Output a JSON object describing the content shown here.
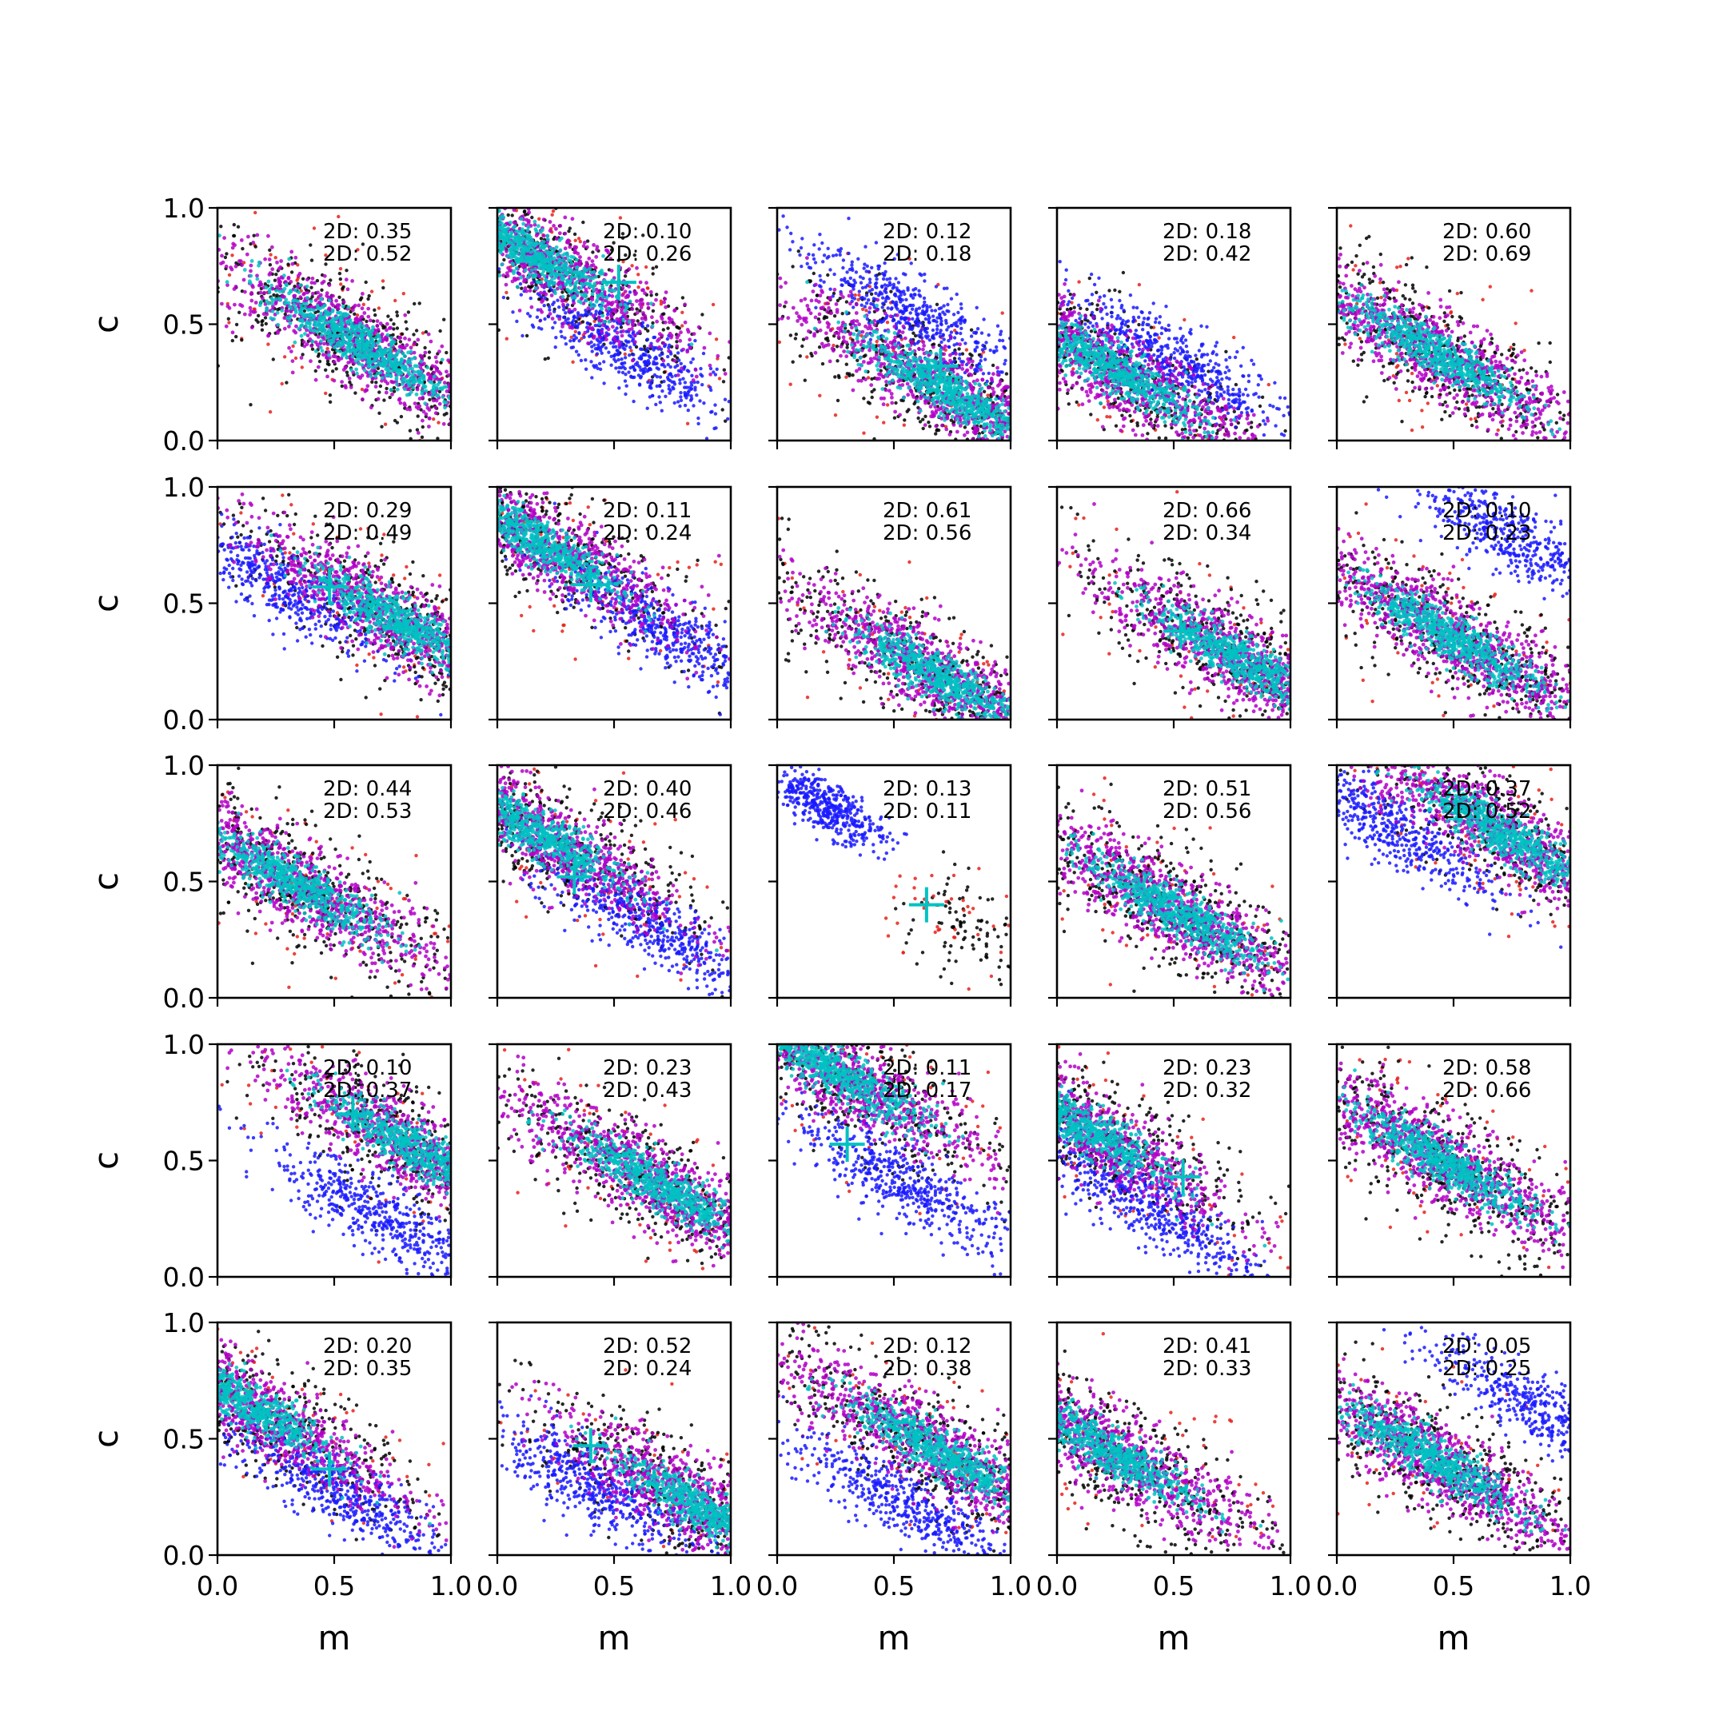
{
  "colors": {
    "outer": "#e8211a",
    "wide": "#000000",
    "mid": "#b300c8",
    "core": "#00c2c2",
    "alt": "#1a1aff",
    "marker": "#00c2c2"
  },
  "chart_data": {
    "type": "scatter",
    "rows": 5,
    "cols": 5,
    "xlabel": "m",
    "ylabel": "c",
    "xlim": [
      0,
      1
    ],
    "ylim": [
      0,
      1
    ],
    "x_ticks": [
      "0.0",
      "0.5",
      "1.0"
    ],
    "y_ticks": [
      "0.0",
      "0.5",
      "1.0"
    ],
    "panels": [
      {
        "stat1": "2D: 0.35",
        "stat2": "2D: 0.52",
        "center": [
          0.6,
          0.42
        ],
        "alt": null,
        "marker": null
      },
      {
        "stat1": "2D: 0.10",
        "stat2": "2D: 0.26",
        "center": [
          0.15,
          0.8
        ],
        "alt": [
          0.55,
          0.38
        ],
        "marker": [
          0.52,
          0.68
        ]
      },
      {
        "stat1": "2D: 0.12",
        "stat2": "2D: 0.18",
        "center": [
          0.72,
          0.22
        ],
        "alt": [
          0.58,
          0.55
        ],
        "marker": [
          0.7,
          0.32
        ]
      },
      {
        "stat1": "2D: 0.18",
        "stat2": "2D: 0.42",
        "center": [
          0.25,
          0.3
        ],
        "alt": [
          0.5,
          0.35
        ],
        "marker": null
      },
      {
        "stat1": "2D: 0.60",
        "stat2": "2D: 0.69",
        "center": [
          0.42,
          0.38
        ],
        "alt": null,
        "marker": null
      },
      {
        "stat1": "2D: 0.29",
        "stat2": "2D: 0.49",
        "center": [
          0.78,
          0.42
        ],
        "alt": [
          0.25,
          0.58
        ],
        "marker": [
          0.48,
          0.57
        ]
      },
      {
        "stat1": "2D: 0.11",
        "stat2": "2D: 0.24",
        "center": [
          0.15,
          0.78
        ],
        "alt": [
          0.7,
          0.4
        ],
        "marker": [
          0.4,
          0.58
        ]
      },
      {
        "stat1": "2D: 0.61",
        "stat2": "2D: 0.56",
        "center": [
          0.7,
          0.18
        ],
        "alt": null,
        "marker": null
      },
      {
        "stat1": "2D: 0.66",
        "stat2": "2D: 0.34",
        "center": [
          0.8,
          0.25
        ],
        "alt": null,
        "marker": [
          0.53,
          0.38
        ]
      },
      {
        "stat1": "2D: 0.10",
        "stat2": "2D: 0.23",
        "center": [
          0.5,
          0.35
        ],
        "alt": [
          0.72,
          0.8
        ],
        "marker": null
      },
      {
        "stat1": "2D: 0.44",
        "stat2": "2D: 0.53",
        "center": [
          0.32,
          0.5
        ],
        "alt": null,
        "marker": null
      },
      {
        "stat1": "2D: 0.40",
        "stat2": "2D: 0.46",
        "center": [
          0.15,
          0.72
        ],
        "alt": [
          0.65,
          0.32
        ],
        "marker": [
          0.33,
          0.52
        ]
      },
      {
        "stat1": "2D: 0.13",
        "stat2": "2D: 0.11",
        "center": null,
        "alt": [
          0.22,
          0.82
        ],
        "marker": [
          0.64,
          0.4
        ]
      },
      {
        "stat1": "2D: 0.51",
        "stat2": "2D: 0.56",
        "center": [
          0.5,
          0.38
        ],
        "alt": null,
        "marker": null
      },
      {
        "stat1": "2D: 0.37",
        "stat2": "2D: 0.52",
        "center": [
          0.72,
          0.7
        ],
        "alt": [
          0.2,
          0.75
        ],
        "marker": null
      },
      {
        "stat1": "2D: 0.10",
        "stat2": "2D: 0.37",
        "center": [
          0.85,
          0.55
        ],
        "alt": [
          0.7,
          0.25
        ],
        "marker": [
          0.58,
          0.7
        ]
      },
      {
        "stat1": "2D: 0.23",
        "stat2": "2D: 0.43",
        "center": [
          0.68,
          0.4
        ],
        "alt": null,
        "marker": null
      },
      {
        "stat1": "2D: 0.11",
        "stat2": "2D: 0.17",
        "center": [
          0.25,
          0.88
        ],
        "alt": [
          0.55,
          0.4
        ],
        "marker": [
          0.3,
          0.57
        ]
      },
      {
        "stat1": "2D: 0.23",
        "stat2": "2D: 0.32",
        "center": [
          0.1,
          0.65
        ],
        "alt": [
          0.4,
          0.3
        ],
        "marker": [
          0.54,
          0.43
        ]
      },
      {
        "stat1": "2D: 0.58",
        "stat2": "2D: 0.66",
        "center": [
          0.45,
          0.5
        ],
        "alt": null,
        "marker": null
      },
      {
        "stat1": "2D: 0.20",
        "stat2": "2D: 0.35",
        "center": [
          0.12,
          0.65
        ],
        "alt": [
          0.5,
          0.28
        ],
        "marker": [
          0.48,
          0.37
        ]
      },
      {
        "stat1": "2D: 0.52",
        "stat2": "2D: 0.24",
        "center": [
          0.88,
          0.2
        ],
        "alt": [
          0.4,
          0.3
        ],
        "marker": [
          0.4,
          0.47
        ]
      },
      {
        "stat1": "2D: 0.12",
        "stat2": "2D: 0.38",
        "center": [
          0.68,
          0.45
        ],
        "alt": [
          0.55,
          0.22
        ],
        "marker": null
      },
      {
        "stat1": "2D: 0.41",
        "stat2": "2D: 0.33",
        "center": [
          0.22,
          0.45
        ],
        "alt": null,
        "marker": null
      },
      {
        "stat1": "2D: 0.05",
        "stat2": "2D: 0.25",
        "center": [
          0.4,
          0.42
        ],
        "alt": [
          0.88,
          0.62
        ],
        "marker": null
      }
    ]
  }
}
